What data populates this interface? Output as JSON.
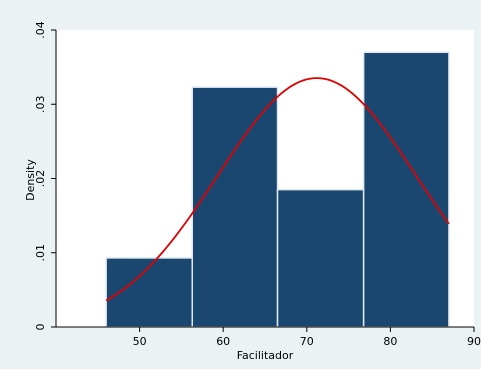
{
  "chart_data": {
    "type": "bar",
    "subtype": "histogram with normal density overlay",
    "title": "",
    "xlabel": "Facilitador",
    "ylabel": "Density",
    "xlim": [
      40,
      90
    ],
    "ylim": [
      0,
      0.04
    ],
    "x_ticks": [
      50,
      60,
      70,
      80,
      90
    ],
    "x_tick_labels": [
      "50",
      "60",
      "70",
      "80",
      "90"
    ],
    "y_ticks": [
      0,
      0.01,
      0.02,
      0.03,
      0.04
    ],
    "y_tick_labels": [
      "0",
      ".01",
      ".02",
      ".03",
      ".04"
    ],
    "bins": [
      {
        "start": 46,
        "end": 56.3,
        "density": 0.0093
      },
      {
        "start": 56.3,
        "end": 66.5,
        "density": 0.0323
      },
      {
        "start": 66.5,
        "end": 76.8,
        "density": 0.0185
      },
      {
        "start": 76.8,
        "end": 87,
        "density": 0.037
      }
    ],
    "normal_curve": {
      "mean": 71.2,
      "sd": 11.9,
      "x_range": [
        46,
        87
      ]
    },
    "colors": {
      "background": "#eaf2f3",
      "plot_area": "#ffffff",
      "bar_fill": "#1a476f",
      "bar_edge": "#dfe8ee",
      "curve": "#e00000"
    },
    "grid": false,
    "legend": "none"
  }
}
